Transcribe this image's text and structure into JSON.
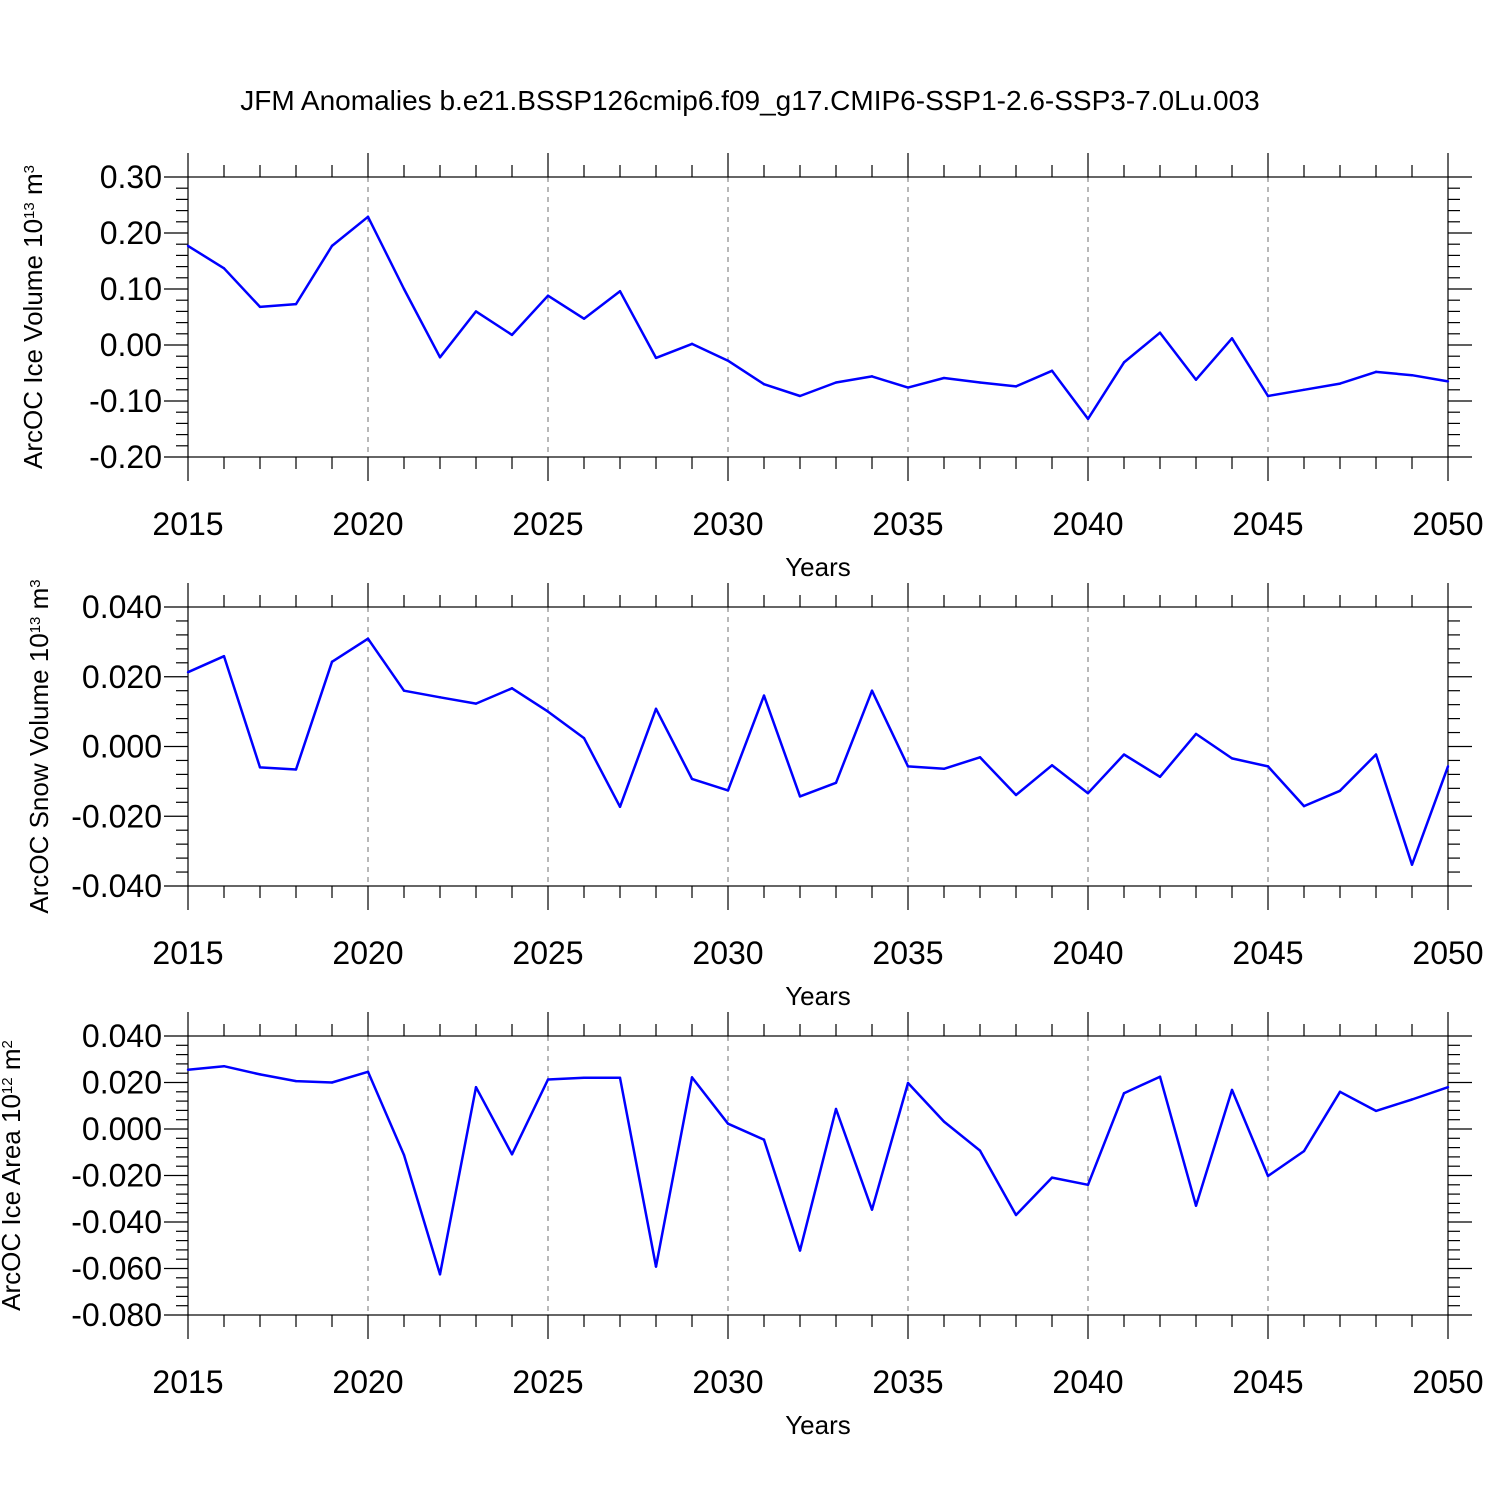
{
  "title": "JFM Anomalies b.e21.BSSP126cmip6.f09_g17.CMIP6-SSP1-2.6-SSP3-7.0Lu.003",
  "line_color": "#0000ff",
  "chart_data": [
    {
      "type": "line",
      "xlabel": "Years",
      "ylabel": {
        "prefix": "ArcOC Ice Volume 10",
        "exp": "13",
        "unit": " m",
        "unit_exp": "3"
      },
      "xlim": [
        2015,
        2050
      ],
      "ylim": [
        -0.2,
        0.3
      ],
      "xticks": [
        2015,
        2020,
        2025,
        2030,
        2035,
        2040,
        2045,
        2050
      ],
      "xtick_labels": [
        "2015",
        "2020",
        "2025",
        "2030",
        "2035",
        "2040",
        "2045",
        "2050"
      ],
      "yticks": [
        -0.2,
        -0.1,
        0.0,
        0.1,
        0.2,
        0.3
      ],
      "ytick_labels": [
        "-0.20",
        "-0.10",
        "0.00",
        "0.10",
        "0.20",
        "0.30"
      ],
      "grid": "vertical dashed at major x ticks",
      "x": [
        2015,
        2016,
        2017,
        2018,
        2019,
        2020,
        2021,
        2022,
        2023,
        2024,
        2025,
        2026,
        2027,
        2028,
        2029,
        2030,
        2031,
        2032,
        2033,
        2034,
        2035,
        2036,
        2037,
        2038,
        2039,
        2040,
        2041,
        2042,
        2043,
        2044,
        2045,
        2046,
        2047,
        2048,
        2049,
        2050
      ],
      "values": [
        0.177,
        0.137,
        0.068,
        0.073,
        0.177,
        0.229,
        0.1,
        -0.022,
        0.06,
        0.018,
        0.088,
        0.047,
        0.096,
        -0.023,
        0.002,
        -0.028,
        -0.07,
        -0.091,
        -0.067,
        -0.056,
        -0.076,
        -0.059,
        -0.067,
        -0.074,
        -0.046,
        -0.132,
        -0.031,
        0.022,
        -0.062,
        0.012,
        -0.091,
        -0.08,
        -0.069,
        -0.048,
        -0.054,
        -0.065
      ]
    },
    {
      "type": "line",
      "xlabel": "Years",
      "ylabel": {
        "prefix": "ArcOC Snow Volume 10",
        "exp": "13",
        "unit": " m",
        "unit_exp": "3"
      },
      "xlim": [
        2015,
        2050
      ],
      "ylim": [
        -0.04,
        0.04
      ],
      "xticks": [
        2015,
        2020,
        2025,
        2030,
        2035,
        2040,
        2045,
        2050
      ],
      "xtick_labels": [
        "2015",
        "2020",
        "2025",
        "2030",
        "2035",
        "2040",
        "2045",
        "2050"
      ],
      "yticks": [
        -0.04,
        -0.02,
        0.0,
        0.02,
        0.04
      ],
      "ytick_labels": [
        "-0.040",
        "-0.020",
        "0.000",
        "0.020",
        "0.040"
      ],
      "grid": "vertical dashed at major x ticks",
      "x": [
        2015,
        2016,
        2017,
        2018,
        2019,
        2020,
        2021,
        2022,
        2023,
        2024,
        2025,
        2026,
        2027,
        2028,
        2029,
        2030,
        2031,
        2032,
        2033,
        2034,
        2035,
        2036,
        2037,
        2038,
        2039,
        2040,
        2041,
        2042,
        2043,
        2044,
        2045,
        2046,
        2047,
        2048,
        2049,
        2050
      ],
      "values": [
        0.0213,
        0.0259,
        -0.006,
        -0.0066,
        0.0243,
        0.0309,
        0.016,
        0.0141,
        0.0123,
        0.0167,
        0.01,
        0.0024,
        -0.0173,
        0.0108,
        -0.0093,
        -0.0126,
        0.0146,
        -0.0143,
        -0.0104,
        0.016,
        -0.0057,
        -0.0064,
        -0.0031,
        -0.0139,
        -0.0054,
        -0.0134,
        -0.0023,
        -0.0087,
        0.0036,
        -0.0034,
        -0.0057,
        -0.0171,
        -0.0127,
        -0.0023,
        -0.0339,
        -0.0057
      ]
    },
    {
      "type": "line",
      "xlabel": "Years",
      "ylabel": {
        "prefix": "ArcOC Ice Area 10",
        "exp": "12",
        "unit": " m",
        "unit_exp": "2"
      },
      "xlim": [
        2015,
        2050
      ],
      "ylim": [
        -0.08,
        0.04
      ],
      "xticks": [
        2015,
        2020,
        2025,
        2030,
        2035,
        2040,
        2045,
        2050
      ],
      "xtick_labels": [
        "2015",
        "2020",
        "2025",
        "2030",
        "2035",
        "2040",
        "2045",
        "2050"
      ],
      "yticks": [
        -0.08,
        -0.06,
        -0.04,
        -0.02,
        0.0,
        0.02,
        0.04
      ],
      "ytick_labels": [
        "-0.080",
        "-0.060",
        "-0.040",
        "-0.020",
        "0.000",
        "0.020",
        "0.040"
      ],
      "grid": "vertical dashed at major x ticks",
      "x": [
        2015,
        2016,
        2017,
        2018,
        2019,
        2020,
        2021,
        2022,
        2023,
        2024,
        2025,
        2026,
        2027,
        2028,
        2029,
        2030,
        2031,
        2032,
        2033,
        2034,
        2035,
        2036,
        2037,
        2038,
        2039,
        2040,
        2041,
        2042,
        2043,
        2044,
        2045,
        2046,
        2047,
        2048,
        2049,
        2050
      ],
      "values": [
        0.0255,
        0.027,
        0.0235,
        0.0206,
        0.02,
        0.0246,
        -0.0112,
        -0.0625,
        0.018,
        -0.0109,
        0.0213,
        0.022,
        0.022,
        -0.0592,
        0.0222,
        0.0023,
        -0.0046,
        -0.0523,
        0.0086,
        -0.0347,
        0.0198,
        0.0032,
        -0.0093,
        -0.037,
        -0.0209,
        -0.024,
        0.0154,
        0.0225,
        -0.033,
        0.0168,
        -0.0202,
        -0.0095,
        0.016,
        0.0078,
        0.0127,
        0.018
      ]
    }
  ]
}
